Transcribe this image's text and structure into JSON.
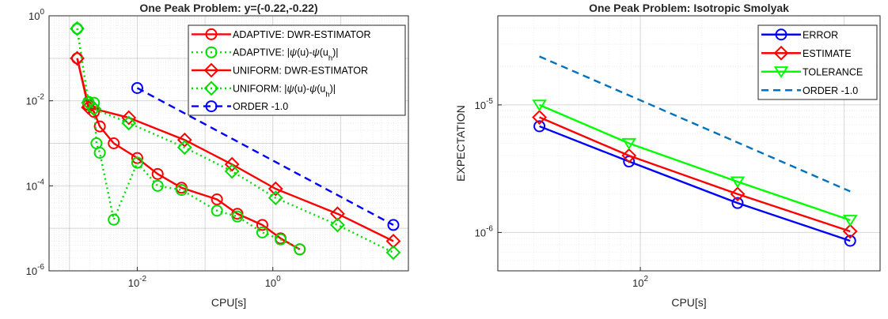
{
  "figure": {
    "background": "#ffffff"
  },
  "chart_data": [
    {
      "type": "line",
      "title": "One Peak Problem: y=(-0.22,-0.22)",
      "xlabel": "CPU[s]",
      "ylabel": "",
      "xscale": "log",
      "yscale": "log",
      "xlim": [
        0.0005,
        100
      ],
      "ylim": [
        1e-06,
        1
      ],
      "xticks": [
        {
          "v": 0.01,
          "base": "10",
          "exp": "-2"
        },
        {
          "v": 1,
          "base": "10",
          "exp": "0"
        }
      ],
      "yticks": [
        {
          "v": 1e-06,
          "base": "10",
          "exp": "-6"
        },
        {
          "v": 0.0001,
          "base": "10",
          "exp": "-4"
        },
        {
          "v": 0.01,
          "base": "10",
          "exp": "-2"
        },
        {
          "v": 1,
          "base": "10",
          "exp": "0"
        }
      ],
      "grid": true,
      "legend_position": "top-right",
      "series": [
        {
          "label": "ADAPTIVE: DWR-ESTIMATOR",
          "color": "#ff0000",
          "style": "solid",
          "marker": "circle",
          "x": [
            0.0013,
            0.0019,
            0.0023,
            0.0028,
            0.0045,
            0.01,
            0.02,
            0.045,
            0.15,
            0.3,
            0.7,
            1.3,
            2.5
          ],
          "y": [
            0.1,
            0.008,
            0.0055,
            0.0025,
            0.001,
            0.00045,
            0.00019,
            9e-05,
            4.8e-05,
            2.2e-05,
            1.2e-05,
            5.8e-06,
            3.2e-06
          ]
        },
        {
          "label": "ADAPTIVE: |ψ(u)-ψ(u_h)|",
          "label_parts": [
            "ADAPTIVE: |",
            "ψ",
            "(u)-",
            "ψ",
            "(u",
            "h",
            ")|"
          ],
          "color": "#00dd00",
          "style": "dotted",
          "marker": "circle",
          "x": [
            0.0013,
            0.0019,
            0.0023,
            0.0025,
            0.0028,
            0.0045,
            0.01,
            0.02,
            0.045,
            0.15,
            0.3,
            0.7,
            1.3,
            2.5
          ],
          "y": [
            0.5,
            0.0095,
            0.009,
            0.001,
            0.0006,
            1.6e-05,
            0.00035,
            0.0001,
            8e-05,
            2.6e-05,
            1.9e-05,
            8e-06,
            5.5e-06,
            3.2e-06
          ]
        },
        {
          "label": "UNIFORM: DWR-ESTIMATOR",
          "color": "#ff0000",
          "style": "solid",
          "marker": "diamond",
          "x": [
            0.0013,
            0.0019,
            0.0023,
            0.0075,
            0.05,
            0.25,
            1.1,
            9,
            60
          ],
          "y": [
            0.1,
            0.007,
            0.0065,
            0.004,
            0.0012,
            0.00032,
            8.5e-05,
            2.2e-05,
            5e-06
          ]
        },
        {
          "label": "UNIFORM: |ψ(u)-ψ(u_h)|",
          "label_parts": [
            "UNIFORM: |",
            "ψ",
            "(u)-",
            "ψ",
            "(u",
            "h",
            ")|"
          ],
          "color": "#00dd00",
          "style": "dotted",
          "marker": "diamond",
          "x": [
            0.0013,
            0.0019,
            0.0023,
            0.0075,
            0.05,
            0.25,
            1.1,
            9,
            60
          ],
          "y": [
            0.5,
            0.009,
            0.0065,
            0.003,
            0.0008,
            0.00022,
            5.2e-05,
            1.2e-05,
            2.7e-06
          ]
        },
        {
          "label": "ORDER -1.0",
          "color": "#0000ff",
          "style": "dashed",
          "marker": "circle",
          "x": [
            0.01,
            60
          ],
          "y": [
            0.02,
            1.2e-05
          ]
        }
      ]
    },
    {
      "type": "line",
      "title": "One Peak Problem: Isotropic Smolyak",
      "xlabel": "CPU[s]",
      "ylabel": "EXPECTATION",
      "xscale": "log",
      "yscale": "log",
      "xlim": [
        20,
        1500
      ],
      "ylim": [
        5e-07,
        5e-05
      ],
      "xticks": [
        {
          "v": 100,
          "base": "10",
          "exp": "2"
        }
      ],
      "yticks": [
        {
          "v": 1e-06,
          "base": "10",
          "exp": "-6"
        },
        {
          "v": 1e-05,
          "base": "10",
          "exp": "-5"
        }
      ],
      "grid": true,
      "legend_position": "top-right",
      "series": [
        {
          "label": "ERROR",
          "color": "#0000ff",
          "style": "solid",
          "marker": "circle",
          "x": [
            32,
            88,
            300,
            1070
          ],
          "y": [
            6.8e-06,
            3.6e-06,
            1.7e-06,
            8.6e-07
          ]
        },
        {
          "label": "ESTIMATE",
          "color": "#ff0000",
          "style": "solid",
          "marker": "diamond",
          "x": [
            32,
            88,
            300,
            1070
          ],
          "y": [
            8e-06,
            4e-06,
            2e-06,
            1.02e-06
          ]
        },
        {
          "label": "TOLERANCE",
          "color": "#00ff00",
          "style": "solid",
          "marker": "triangle-down",
          "x": [
            32,
            88,
            300,
            1070
          ],
          "y": [
            1e-05,
            5e-06,
            2.5e-06,
            1.25e-06
          ]
        },
        {
          "label": "ORDER -1.0",
          "color": "#0072bd",
          "style": "dashed",
          "marker": "none",
          "x": [
            32,
            1070
          ],
          "y": [
            2.4e-05,
            2.1e-06
          ]
        }
      ]
    }
  ]
}
